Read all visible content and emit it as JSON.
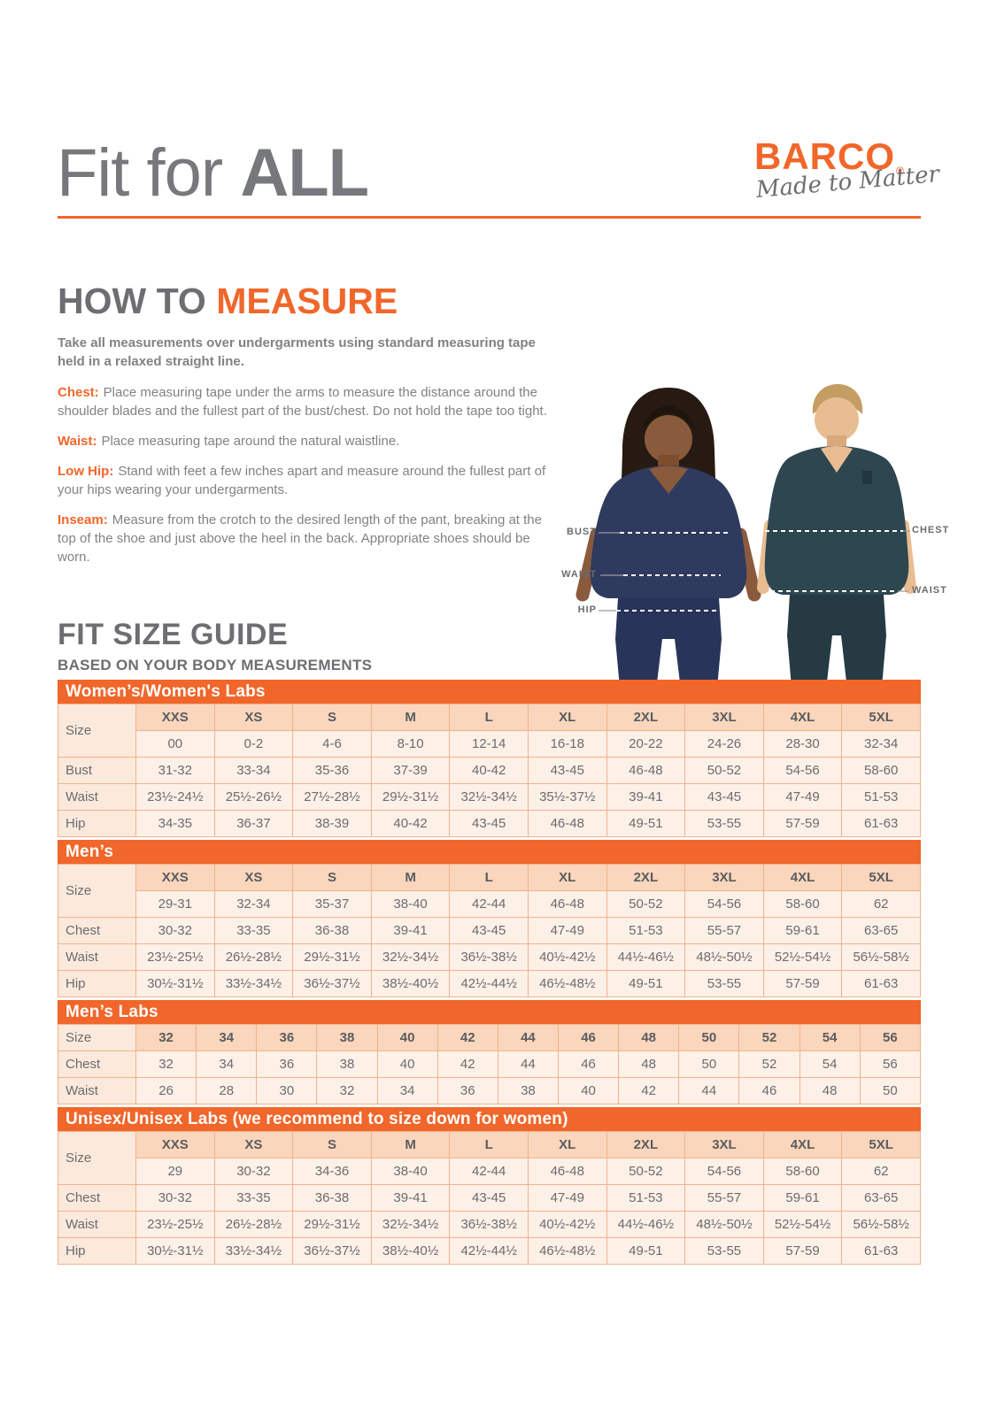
{
  "header": {
    "title_light": "Fit for ",
    "title_heavy": "ALL",
    "brand": "BARCO",
    "brand_reg": "®",
    "tagline": "Made to Matter"
  },
  "how_to_measure": {
    "title_gray": "HOW TO ",
    "title_orange": "MEASURE",
    "intro": "Take all measurements over undergarments using standard measuring tape held in a relaxed straight line.",
    "items": [
      {
        "label": "Chest:",
        "text": "Place measuring tape under the arms to measure the distance around the shoulder blades and the fullest part of the bust/chest. Do not hold the tape too tight."
      },
      {
        "label": "Waist:",
        "text": "Place measuring tape around the natural waistline."
      },
      {
        "label": "Low Hip:",
        "text": "Stand with feet a few inches apart and measure around the fullest part of your hips wearing your undergarments."
      },
      {
        "label": "Inseam:",
        "text": "Measure from the crotch to the desired length of the pant, breaking at the top of the shoe and just above the heel in the back. Appropriate shoes should be worn."
      }
    ]
  },
  "figure": {
    "labels": [
      {
        "text": "BUST"
      },
      {
        "text": "WAIST"
      },
      {
        "text": "HIP"
      },
      {
        "text": "CHEST"
      },
      {
        "text": "WAIST"
      }
    ]
  },
  "size_guide": {
    "title": "FIT SIZE GUIDE",
    "subtitle": "BASED ON YOUR BODY MEASUREMENTS",
    "row_label_header": "Size",
    "tables": [
      {
        "title": "Women’s/Women's Labs",
        "size_headers": [
          "XXS",
          "XS",
          "S",
          "M",
          "L",
          "XL",
          "2XL",
          "3XL",
          "4XL",
          "5XL"
        ],
        "sub_row": [
          "00",
          "0-2",
          "4-6",
          "8-10",
          "12-14",
          "16-18",
          "20-22",
          "24-26",
          "28-30",
          "32-34"
        ],
        "rows": [
          {
            "label": "Bust",
            "values": [
              "31-32",
              "33-34",
              "35-36",
              "37-39",
              "40-42",
              "43-45",
              "46-48",
              "50-52",
              "54-56",
              "58-60"
            ]
          },
          {
            "label": "Waist",
            "values": [
              "23½-24½",
              "25½-26½",
              "27½-28½",
              "29½-31½",
              "32½-34½",
              "35½-37½",
              "39-41",
              "43-45",
              "47-49",
              "51-53"
            ]
          },
          {
            "label": "Hip",
            "values": [
              "34-35",
              "36-37",
              "38-39",
              "40-42",
              "43-45",
              "46-48",
              "49-51",
              "53-55",
              "57-59",
              "61-63"
            ]
          }
        ]
      },
      {
        "title": "Men’s",
        "size_headers": [
          "XXS",
          "XS",
          "S",
          "M",
          "L",
          "XL",
          "2XL",
          "3XL",
          "4XL",
          "5XL"
        ],
        "sub_row": [
          "29-31",
          "32-34",
          "35-37",
          "38-40",
          "42-44",
          "46-48",
          "50-52",
          "54-56",
          "58-60",
          "62"
        ],
        "rows": [
          {
            "label": "Chest",
            "values": [
              "30-32",
              "33-35",
              "36-38",
              "39-41",
              "43-45",
              "47-49",
              "51-53",
              "55-57",
              "59-61",
              "63-65"
            ]
          },
          {
            "label": "Waist",
            "values": [
              "23½-25½",
              "26½-28½",
              "29½-31½",
              "32½-34½",
              "36½-38½",
              "40½-42½",
              "44½-46½",
              "48½-50½",
              "52½-54½",
              "56½-58½"
            ]
          },
          {
            "label": "Hip",
            "values": [
              "30½-31½",
              "33½-34½",
              "36½-37½",
              "38½-40½",
              "42½-44½",
              "46½-48½",
              "49-51",
              "53-55",
              "57-59",
              "61-63"
            ]
          }
        ]
      },
      {
        "title": "Men’s Labs",
        "size_headers": [
          "32",
          "34",
          "36",
          "38",
          "40",
          "42",
          "44",
          "46",
          "48",
          "50",
          "52",
          "54",
          "56"
        ],
        "sub_row": null,
        "rows": [
          {
            "label": "Chest",
            "values": [
              "32",
              "34",
              "36",
              "38",
              "40",
              "42",
              "44",
              "46",
              "48",
              "50",
              "52",
              "54",
              "56"
            ]
          },
          {
            "label": "Waist",
            "values": [
              "26",
              "28",
              "30",
              "32",
              "34",
              "36",
              "38",
              "40",
              "42",
              "44",
              "46",
              "48",
              "50"
            ]
          }
        ]
      },
      {
        "title": "Unisex/Unisex Labs (we recommend to size down for women)",
        "size_headers": [
          "XXS",
          "XS",
          "S",
          "M",
          "L",
          "XL",
          "2XL",
          "3XL",
          "4XL",
          "5XL"
        ],
        "sub_row": [
          "29",
          "30-32",
          "34-36",
          "38-40",
          "42-44",
          "46-48",
          "50-52",
          "54-56",
          "58-60",
          "62"
        ],
        "rows": [
          {
            "label": "Chest",
            "values": [
              "30-32",
              "33-35",
              "36-38",
              "39-41",
              "43-45",
              "47-49",
              "51-53",
              "55-57",
              "59-61",
              "63-65"
            ]
          },
          {
            "label": "Waist",
            "values": [
              "23½-25½",
              "26½-28½",
              "29½-31½",
              "32½-34½",
              "36½-38½",
              "40½-42½",
              "44½-46½",
              "48½-50½",
              "52½-54½",
              "56½-58½"
            ]
          },
          {
            "label": "Hip",
            "values": [
              "30½-31½",
              "33½-34½",
              "36½-37½",
              "38½-40½",
              "42½-44½",
              "46½-48½",
              "49-51",
              "53-55",
              "57-59",
              "61-63"
            ]
          }
        ]
      }
    ]
  },
  "colors": {
    "brand_orange": "#F1662A",
    "heading_gray": "#77787B",
    "text_gray": "#808285",
    "table_banner_bg": "#F1662A",
    "table_header_bg": "#F9D6BC",
    "table_row_bg": "#FDF0E7",
    "table_label_bg": "#FBE9DC",
    "table_border": "#F3B28D",
    "scrub_navy": "#2E3A5E",
    "scrub_teal": "#2E4650"
  }
}
